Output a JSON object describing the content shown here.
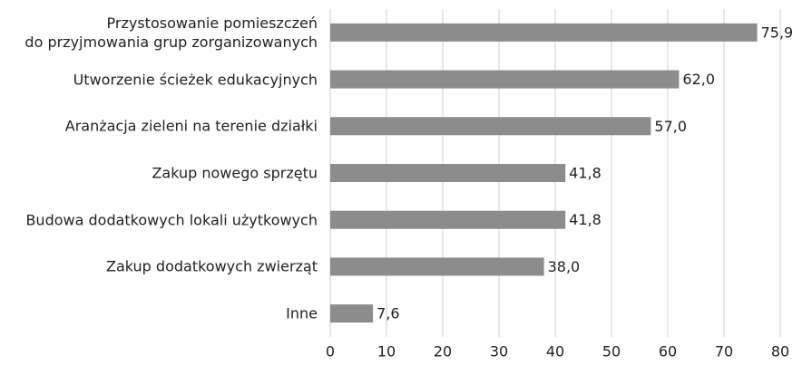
{
  "chart_data": {
    "type": "bar",
    "orientation": "horizontal",
    "categories": [
      "Przystosowanie pomieszczeń\ndo przyjmowania grup zorganizowanych",
      "Utworzenie ścieżek edukacyjnych",
      "Aranżacja zieleni na terenie działki",
      "Zakup nowego sprzętu",
      "Budowa dodatkowych lokali użytkowych",
      "Zakup dodatkowych zwierząt",
      "Inne"
    ],
    "values": [
      75.9,
      62.0,
      57.0,
      41.8,
      41.8,
      38.0,
      7.6
    ],
    "value_labels": [
      "75,9",
      "62,0",
      "57,0",
      "41,8",
      "41,8",
      "38,0",
      "7,6"
    ],
    "color": "#8c8c8c",
    "xlim": [
      0,
      80
    ],
    "xticks": [
      0,
      10,
      20,
      30,
      40,
      50,
      60,
      70,
      80
    ],
    "grid": true
  }
}
